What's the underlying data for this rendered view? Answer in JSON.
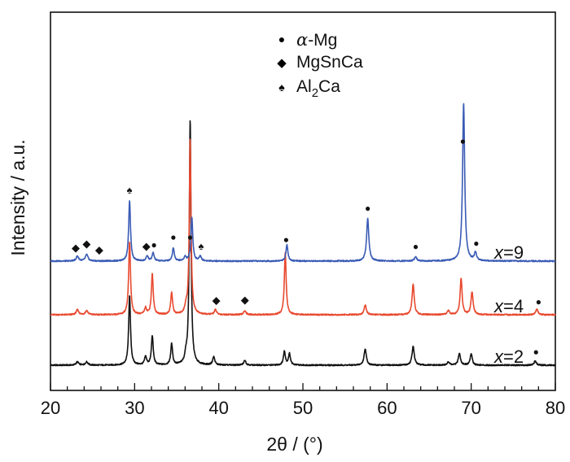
{
  "chart_data": {
    "type": "line",
    "title": "",
    "xlabel": "2θ / (°)",
    "ylabel": "Intensity / a.u.",
    "xlim": [
      20,
      80
    ],
    "x_ticks": [
      "20",
      "30",
      "40",
      "50",
      "60",
      "70",
      "80"
    ],
    "y_ticks_visible": false,
    "grid": false,
    "baselines": [
      0,
      62,
      128
    ],
    "series": [
      {
        "name": "x=2",
        "label_var": "x",
        "label_value": "=2",
        "color": "#111111",
        "offset": 0,
        "peaks": [
          {
            "x": 23.2,
            "h": 4,
            "w": 0.18
          },
          {
            "x": 24.3,
            "h": 4,
            "w": 0.18
          },
          {
            "x": 29.4,
            "h": 86,
            "w": 0.13
          },
          {
            "x": 31.3,
            "h": 10,
            "w": 0.15
          },
          {
            "x": 32.1,
            "h": 36,
            "w": 0.13
          },
          {
            "x": 34.4,
            "h": 26,
            "w": 0.13
          },
          {
            "x": 36.1,
            "h": 9,
            "w": 0.15
          },
          {
            "x": 36.6,
            "h": 302,
            "w": 0.12
          },
          {
            "x": 39.4,
            "h": 10,
            "w": 0.15
          },
          {
            "x": 43.1,
            "h": 6,
            "w": 0.15
          },
          {
            "x": 47.8,
            "h": 17,
            "w": 0.14
          },
          {
            "x": 48.4,
            "h": 14,
            "w": 0.14
          },
          {
            "x": 57.4,
            "h": 20,
            "w": 0.16
          },
          {
            "x": 63.1,
            "h": 23,
            "w": 0.16
          },
          {
            "x": 67.3,
            "h": 4,
            "w": 0.16
          },
          {
            "x": 68.6,
            "h": 15,
            "w": 0.15
          },
          {
            "x": 70.0,
            "h": 14,
            "w": 0.15
          },
          {
            "x": 77.6,
            "h": 5,
            "w": 0.16
          }
        ]
      },
      {
        "name": "x=4",
        "label_var": "x",
        "label_value": "=4",
        "color": "#e8492f",
        "offset": 62,
        "peaks": [
          {
            "x": 23.2,
            "h": 6,
            "w": 0.18
          },
          {
            "x": 24.3,
            "h": 5,
            "w": 0.18
          },
          {
            "x": 29.4,
            "h": 90,
            "w": 0.13
          },
          {
            "x": 31.3,
            "h": 8,
            "w": 0.15
          },
          {
            "x": 32.1,
            "h": 50,
            "w": 0.13
          },
          {
            "x": 34.4,
            "h": 27,
            "w": 0.13
          },
          {
            "x": 36.1,
            "h": 8,
            "w": 0.15
          },
          {
            "x": 36.6,
            "h": 216,
            "w": 0.12
          },
          {
            "x": 39.6,
            "h": 6,
            "w": 0.16
          },
          {
            "x": 43.1,
            "h": 5,
            "w": 0.16
          },
          {
            "x": 47.9,
            "h": 76,
            "w": 0.13
          },
          {
            "x": 57.4,
            "h": 12,
            "w": 0.16
          },
          {
            "x": 63.1,
            "h": 38,
            "w": 0.15
          },
          {
            "x": 67.3,
            "h": 5,
            "w": 0.16
          },
          {
            "x": 68.8,
            "h": 45,
            "w": 0.14
          },
          {
            "x": 70.1,
            "h": 28,
            "w": 0.15
          },
          {
            "x": 77.8,
            "h": 7,
            "w": 0.16
          }
        ]
      },
      {
        "name": "x=9",
        "label_var": "x",
        "label_value": "=9",
        "color": "#3a5bb5",
        "offset": 128,
        "peaks": [
          {
            "x": 23.2,
            "h": 6,
            "w": 0.18
          },
          {
            "x": 24.3,
            "h": 8,
            "w": 0.18
          },
          {
            "x": 29.4,
            "h": 74,
            "w": 0.13
          },
          {
            "x": 31.5,
            "h": 6,
            "w": 0.15
          },
          {
            "x": 32.2,
            "h": 10,
            "w": 0.14
          },
          {
            "x": 34.6,
            "h": 16,
            "w": 0.14
          },
          {
            "x": 36.0,
            "h": 5,
            "w": 0.15
          },
          {
            "x": 36.8,
            "h": 54,
            "w": 0.13
          },
          {
            "x": 37.8,
            "h": 6,
            "w": 0.15
          },
          {
            "x": 48.1,
            "h": 20,
            "w": 0.14
          },
          {
            "x": 57.7,
            "h": 52,
            "w": 0.16
          },
          {
            "x": 63.4,
            "h": 5,
            "w": 0.16
          },
          {
            "x": 69.1,
            "h": 194,
            "w": 0.15
          },
          {
            "x": 70.5,
            "h": 10,
            "w": 0.15
          }
        ]
      }
    ],
    "legend": {
      "placement": "top-center",
      "entries": [
        {
          "marker": "dot",
          "symbol": "●",
          "label_italic": "α",
          "label": "-Mg"
        },
        {
          "marker": "diamond",
          "symbol": "◆",
          "label": "MgSnCa"
        },
        {
          "marker": "spade",
          "symbol": "♠",
          "label_main": "Al",
          "label_sub": "2",
          "label_end": "Ca"
        }
      ]
    },
    "annotations": [
      {
        "phase": "spade",
        "series": "x=9",
        "x": 29.4
      },
      {
        "phase": "dot",
        "series": "x=9",
        "x": 36.6
      },
      {
        "phase": "diamond",
        "series": "x=9",
        "x": 23.0
      },
      {
        "phase": "diamond",
        "series": "x=9",
        "x": 24.3
      },
      {
        "phase": "diamond",
        "series": "x=9",
        "x": 25.8
      },
      {
        "phase": "diamond",
        "series": "x=9",
        "x": 31.4
      },
      {
        "phase": "dot",
        "series": "x=9",
        "x": 32.3
      },
      {
        "phase": "dot",
        "series": "x=9",
        "x": 34.6
      },
      {
        "phase": "spade",
        "series": "x=9",
        "x": 37.9
      },
      {
        "phase": "dot",
        "series": "x=9",
        "x": 48.0
      },
      {
        "phase": "dot",
        "series": "x=9",
        "x": 57.7
      },
      {
        "phase": "dot",
        "series": "x=9",
        "x": 63.4
      },
      {
        "phase": "dot",
        "series": "x=9",
        "x": 69.0
      },
      {
        "phase": "dot",
        "series": "x=9",
        "x": 70.6
      },
      {
        "phase": "diamond",
        "series": "x=4",
        "x": 39.7
      },
      {
        "phase": "diamond",
        "series": "x=4",
        "x": 43.1
      },
      {
        "phase": "dot",
        "series": "x=4",
        "x": 78.0
      },
      {
        "phase": "dot",
        "series": "x=2",
        "x": 77.7
      }
    ]
  }
}
